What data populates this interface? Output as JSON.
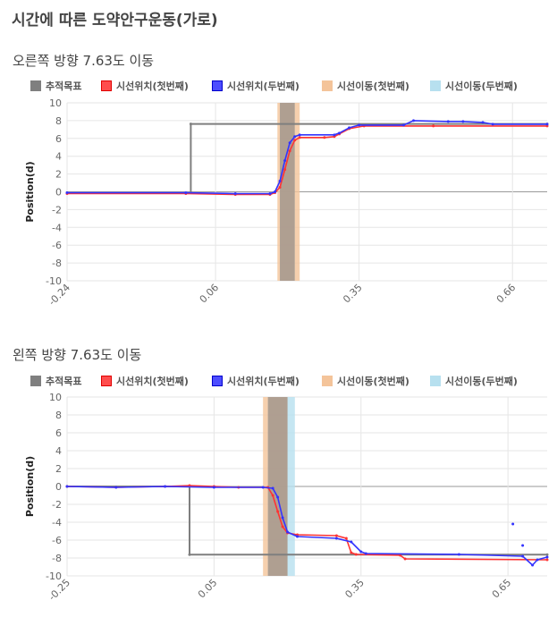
{
  "page": {
    "title": "시간에 따른 도약안구운동(가로)"
  },
  "legend_items": [
    {
      "label": "추적목표",
      "color": "#7f7f7f"
    },
    {
      "label": "시선위치(첫번째)",
      "color": "#ff3333"
    },
    {
      "label": "시선위치(두번째)",
      "color": "#3333ff"
    },
    {
      "label": "시선이동(첫번째)",
      "color": "#f4c49a"
    },
    {
      "label": "시선이동(두번째)",
      "color": "#b7e0ef"
    }
  ],
  "chart_data": [
    {
      "type": "line",
      "title": "오른쪽 방향 7.63도 이동",
      "ylabel": "Position(d)",
      "xlabel": "",
      "xlim": [
        -0.24,
        0.73
      ],
      "ylim": [
        -10,
        10
      ],
      "x_ticks": [
        "-0.24",
        "0.06",
        "0.35",
        "0.66"
      ],
      "y_ticks": [
        "10",
        "8",
        "6",
        "4",
        "2",
        "0",
        "-2",
        "-4",
        "-6",
        "-8",
        "-10"
      ],
      "grid": true,
      "legend_position": "top",
      "series": [
        {
          "name": "추적목표",
          "color": "#7f7f7f",
          "points": [
            [
              -0.24,
              -0.1
            ],
            [
              0.01,
              -0.1
            ],
            [
              0.01,
              7.63
            ],
            [
              0.73,
              7.63
            ]
          ]
        },
        {
          "name": "시선위치(첫번째)",
          "color": "#ff3333",
          "points": [
            [
              -0.24,
              -0.2
            ],
            [
              0.0,
              -0.2
            ],
            [
              0.1,
              -0.3
            ],
            [
              0.17,
              -0.3
            ],
            [
              0.18,
              -0.1
            ],
            [
              0.19,
              0.5
            ],
            [
              0.2,
              2.5
            ],
            [
              0.21,
              4.6
            ],
            [
              0.22,
              5.8
            ],
            [
              0.23,
              6.1
            ],
            [
              0.28,
              6.1
            ],
            [
              0.3,
              6.2
            ],
            [
              0.31,
              6.5
            ],
            [
              0.33,
              7.1
            ],
            [
              0.36,
              7.4
            ],
            [
              0.5,
              7.4
            ],
            [
              0.73,
              7.4
            ]
          ]
        },
        {
          "name": "시선위치(두번째)",
          "color": "#3333ff",
          "points": [
            [
              -0.24,
              -0.1
            ],
            [
              0.0,
              -0.1
            ],
            [
              0.1,
              -0.2
            ],
            [
              0.17,
              -0.2
            ],
            [
              0.18,
              0.0
            ],
            [
              0.19,
              1.2
            ],
            [
              0.2,
              3.5
            ],
            [
              0.21,
              5.5
            ],
            [
              0.22,
              6.2
            ],
            [
              0.23,
              6.4
            ],
            [
              0.3,
              6.4
            ],
            [
              0.31,
              6.6
            ],
            [
              0.33,
              7.2
            ],
            [
              0.35,
              7.5
            ],
            [
              0.44,
              7.5
            ],
            [
              0.46,
              8.0
            ],
            [
              0.53,
              7.9
            ],
            [
              0.56,
              7.9
            ],
            [
              0.6,
              7.8
            ],
            [
              0.62,
              7.6
            ],
            [
              0.73,
              7.6
            ]
          ]
        }
      ],
      "bands": [
        {
          "name": "시선이동(첫번째)",
          "color": "#f4c49a",
          "x": [
            0.185,
            0.23
          ]
        },
        {
          "name": "시선이동(두번째)",
          "color": "#b7e0ef",
          "x": [
            0.19,
            0.22
          ]
        }
      ]
    },
    {
      "type": "line",
      "title": "왼쪽 방향 7.63도 이동",
      "ylabel": "Position(d)",
      "xlabel": "",
      "xlim": [
        -0.25,
        0.73
      ],
      "ylim": [
        -10,
        10
      ],
      "x_ticks": [
        "-0.25",
        "0.05",
        "0.35",
        "0.65"
      ],
      "y_ticks": [
        "10",
        "8",
        "6",
        "4",
        "2",
        "0",
        "-2",
        "-4",
        "-6",
        "-8",
        "-10"
      ],
      "grid": true,
      "legend_position": "top",
      "series": [
        {
          "name": "추적목표",
          "color": "#7f7f7f",
          "points": [
            [
              -0.25,
              0.0
            ],
            [
              0.0,
              0.0
            ],
            [
              0.0,
              -7.63
            ],
            [
              0.73,
              -7.63
            ]
          ]
        },
        {
          "name": "시선위치(첫번째)",
          "color": "#ff3333",
          "points": [
            [
              -0.25,
              0.0
            ],
            [
              -0.15,
              -0.1
            ],
            [
              -0.05,
              0.0
            ],
            [
              0.0,
              0.1
            ],
            [
              0.05,
              0.0
            ],
            [
              0.1,
              -0.1
            ],
            [
              0.16,
              -0.1
            ],
            [
              0.17,
              -1.0
            ],
            [
              0.18,
              -2.8
            ],
            [
              0.19,
              -4.5
            ],
            [
              0.2,
              -5.2
            ],
            [
              0.22,
              -5.4
            ],
            [
              0.3,
              -5.5
            ],
            [
              0.32,
              -5.8
            ],
            [
              0.33,
              -7.4
            ],
            [
              0.34,
              -7.6
            ],
            [
              0.43,
              -7.7
            ],
            [
              0.44,
              -8.1
            ],
            [
              0.73,
              -8.2
            ]
          ]
        },
        {
          "name": "시선위치(두번째)",
          "color": "#3333ff",
          "points": [
            [
              -0.25,
              0.0
            ],
            [
              -0.15,
              -0.1
            ],
            [
              -0.05,
              0.0
            ],
            [
              0.05,
              -0.1
            ],
            [
              0.15,
              -0.1
            ],
            [
              0.17,
              -0.2
            ],
            [
              0.18,
              -1.2
            ],
            [
              0.19,
              -3.5
            ],
            [
              0.2,
              -5.1
            ],
            [
              0.22,
              -5.6
            ],
            [
              0.3,
              -5.8
            ],
            [
              0.33,
              -6.2
            ],
            [
              0.35,
              -7.3
            ],
            [
              0.36,
              -7.5
            ],
            [
              0.55,
              -7.6
            ],
            [
              0.68,
              -7.8
            ],
            [
              0.7,
              -8.8
            ],
            [
              0.71,
              -8.2
            ],
            [
              0.73,
              -7.9
            ]
          ]
        },
        {
          "name": "시선위치(두번째)",
          "color": "#3333ff",
          "points": [
            [
              0.66,
              -4.2
            ],
            [
              0.68,
              -6.6
            ]
          ],
          "markers_only": true
        }
      ],
      "bands": [
        {
          "name": "시선이동(첫번째)",
          "color": "#f4c49a",
          "x": [
            0.15,
            0.2
          ]
        },
        {
          "name": "시선이동(두번째)",
          "color": "#b7e0ef",
          "x": [
            0.16,
            0.215
          ]
        }
      ]
    }
  ]
}
